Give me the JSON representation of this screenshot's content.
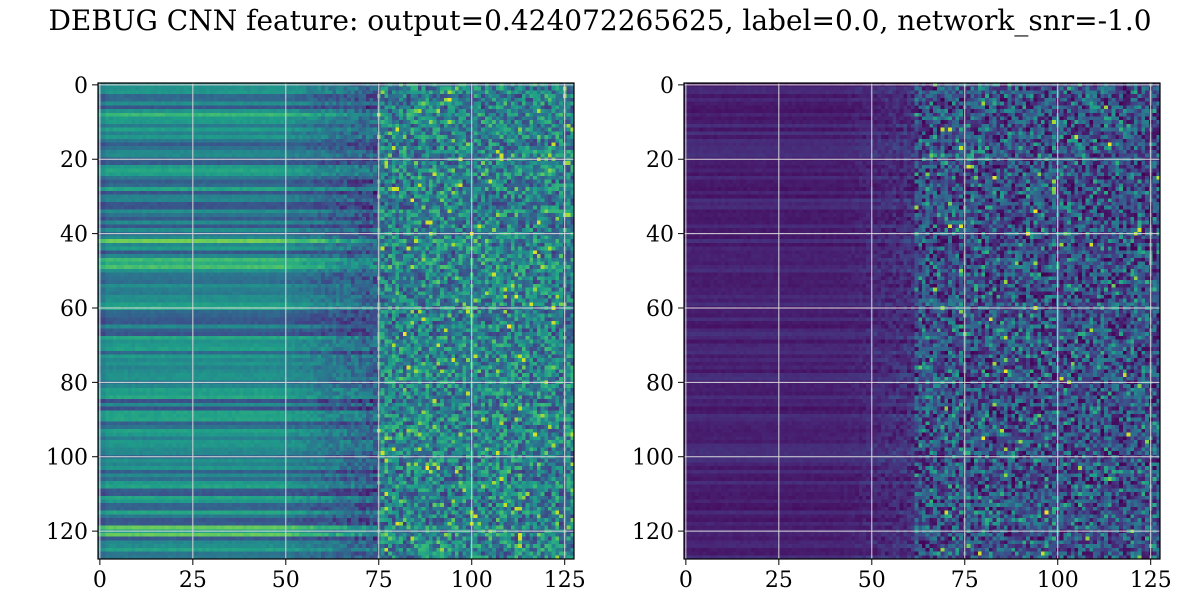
{
  "figure": {
    "title": "DEBUG CNN feature: output=0.424072265625, label=0.0, network_snr=-1.0"
  },
  "chart_data": [
    {
      "type": "heatmap",
      "title": "",
      "xlabel": "",
      "ylabel": "",
      "grid": true,
      "colormap": "viridis",
      "xlim": [
        0,
        128
      ],
      "ylim": [
        128,
        0
      ],
      "x_ticks": [
        0,
        25,
        50,
        75,
        100,
        125
      ],
      "y_ticks": [
        0,
        20,
        40,
        60,
        80,
        100,
        120
      ],
      "rows": 128,
      "cols": 128,
      "features": "horizontal bands for columns 0-75, noisy speckle for columns 75-128; bright speckles near (110,65), (88,103), (100,40)"
    },
    {
      "type": "heatmap",
      "title": "",
      "xlabel": "",
      "ylabel": "",
      "grid": true,
      "colormap": "viridis",
      "xlim": [
        0,
        128
      ],
      "ylim": [
        128,
        0
      ],
      "x_ticks": [
        0,
        25,
        50,
        75,
        100,
        125
      ],
      "y_ticks": [
        0,
        20,
        40,
        60,
        80,
        100,
        120
      ],
      "rows": 128,
      "cols": 128,
      "features": "mostly dark purple with faint bands for columns 0-50, noisy teal speckle for columns 65-128; bright speckles near (92,40), (97,115), (80,95)"
    }
  ]
}
